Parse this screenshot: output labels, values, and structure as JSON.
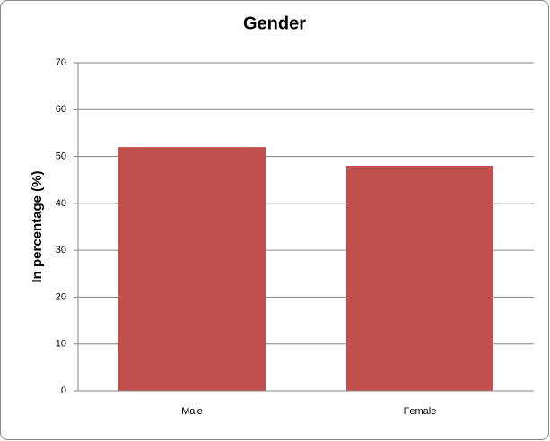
{
  "chart_data": {
    "type": "bar",
    "title": "Gender",
    "y_label": "In percentage (%)",
    "categories": [
      "Male",
      "Female"
    ],
    "values": [
      52,
      48
    ],
    "color": "#c0504d",
    "ylim": [
      0,
      70
    ],
    "yticks": [
      0,
      10,
      20,
      30,
      40,
      50,
      60,
      70
    ],
    "grid": true
  }
}
